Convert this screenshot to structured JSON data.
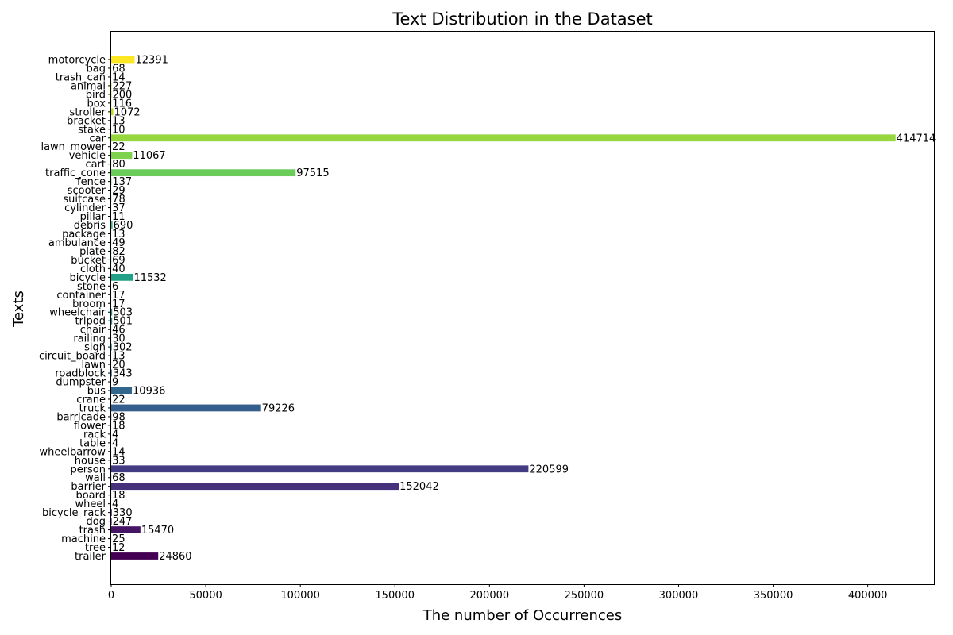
{
  "chart_data": {
    "type": "bar",
    "orientation": "horizontal",
    "title": "Text Distribution in the Dataset",
    "xlabel": "The number of Occurrences",
    "ylabel": "Texts",
    "xlim": [
      0,
      435000
    ],
    "xticks": [
      0,
      50000,
      100000,
      150000,
      200000,
      250000,
      300000,
      350000,
      400000
    ],
    "xtick_labels": [
      "0",
      "50000",
      "100000",
      "150000",
      "200000",
      "250000",
      "300000",
      "350000",
      "400000"
    ],
    "grid": false,
    "colormap": "viridis",
    "categories": [
      "trailer",
      "tree",
      "machine",
      "trash",
      "dog",
      "bicycle_rack",
      "wheel",
      "board",
      "barrier",
      "wall",
      "person",
      "house",
      "wheelbarrow",
      "table",
      "rack",
      "flower",
      "barricade",
      "truck",
      "crane",
      "bus",
      "dumpster",
      "roadblock",
      "lawn",
      "circuit_board",
      "sign",
      "railing",
      "chair",
      "tripod",
      "wheelchair",
      "broom",
      "container",
      "stone",
      "bicycle",
      "cloth",
      "bucket",
      "plate",
      "ambulance",
      "package",
      "debris",
      "pillar",
      "cylinder",
      "suitcase",
      "scooter",
      "fence",
      "traffic_cone",
      "cart",
      "vehicle",
      "lawn_mower",
      "car",
      "stake",
      "bracket",
      "stroller",
      "box",
      "bird",
      "animal",
      "trash_can",
      "bag",
      "motorcycle"
    ],
    "values": [
      24860,
      12,
      25,
      15470,
      247,
      330,
      4,
      18,
      152042,
      68,
      220599,
      33,
      14,
      4,
      4,
      18,
      98,
      79226,
      22,
      10936,
      9,
      343,
      20,
      13,
      302,
      30,
      46,
      501,
      503,
      17,
      17,
      6,
      11532,
      40,
      69,
      82,
      49,
      13,
      690,
      11,
      37,
      78,
      29,
      137,
      97515,
      80,
      11067,
      22,
      414714,
      10,
      13,
      1072,
      116,
      200,
      227,
      14,
      68,
      12391
    ],
    "value_labels": [
      "24860",
      "12",
      "25",
      "15470",
      "247",
      "330",
      "4",
      "18",
      "152042",
      "68",
      "220599",
      "33",
      "14",
      "4",
      "4",
      "18",
      "98",
      "79226",
      "22",
      "10936",
      "9",
      "343",
      "20",
      "13",
      "302",
      "30",
      "46",
      "501",
      "503",
      "17",
      "17",
      "6",
      "11532",
      "40",
      "69",
      "82",
      "49",
      "13",
      "690",
      "11",
      "37",
      "78",
      "29",
      "137",
      "97515",
      "80",
      "11067",
      "22",
      "414714",
      "10",
      "13",
      "1072",
      "116",
      "200",
      "227",
      "14",
      "68",
      "12391"
    ]
  }
}
